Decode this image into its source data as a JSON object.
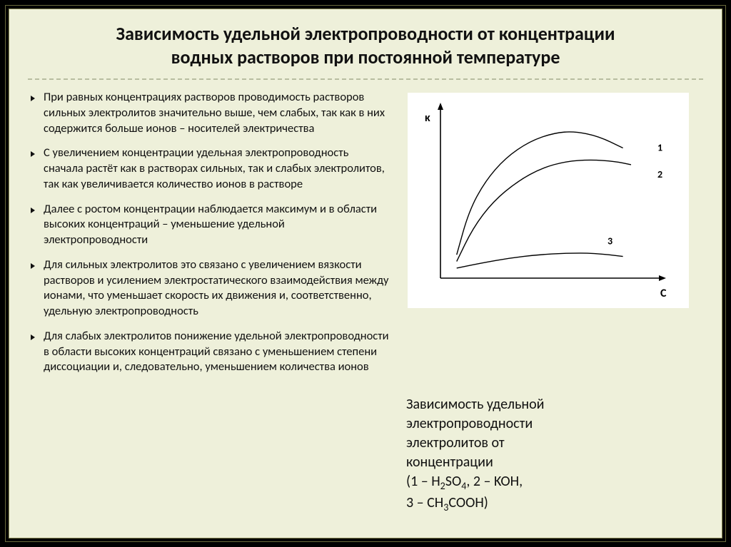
{
  "title_line1": "Зависимость удельной электропроводности от концентрации",
  "title_line2": "водных растворов при постоянной температуре",
  "bullets": [
    "При равных концентрациях растворов проводимость растворов сильных электролитов значительно выше, чем слабых, так как в них содержится больше ионов – носителей электричества",
    "С увеличением концентрации удельная электропроводность сначала растёт как в растворах сильных, так и слабых электролитов, так как увеличивается количество ионов в растворе",
    " Далее с ростом концентрации наблюдается максимум и в области высоких концентраций – уменьшение удельной электропроводности",
    "Для сильных электролитов это связано с увеличением вязкости растворов и усилением электростатического взаимодействия между ионами, что уменьшает скорость их движения и, соответственно, удельную электропроводность",
    "Для слабых электролитов понижение удельной электропроводности в области высоких концентраций связано с уменьшением степени диссоциации и, следовательно, уменьшением количества ионов"
  ],
  "chart": {
    "type": "line",
    "background_color": "#ffffff",
    "axis_color": "#000000",
    "stroke_color": "#000000",
    "stroke_width": 1.4,
    "y_label": "κ",
    "x_label": "С",
    "label_fontsize": 16,
    "line_label_fontsize": 14,
    "xlim": [
      0,
      100
    ],
    "ylim": [
      0,
      100
    ],
    "curves": {
      "1": {
        "label": "1",
        "points": [
          [
            8,
            14
          ],
          [
            14,
            40
          ],
          [
            22,
            58
          ],
          [
            32,
            72
          ],
          [
            44,
            82
          ],
          [
            56,
            87
          ],
          [
            66,
            88
          ],
          [
            78,
            85
          ],
          [
            90,
            78
          ]
        ]
      },
      "2": {
        "label": "2",
        "points": [
          [
            8,
            10
          ],
          [
            16,
            30
          ],
          [
            26,
            46
          ],
          [
            38,
            58
          ],
          [
            50,
            66
          ],
          [
            62,
            70
          ],
          [
            74,
            71
          ],
          [
            86,
            70
          ],
          [
            94,
            68
          ]
        ]
      },
      "3": {
        "label": "3",
        "points": [
          [
            8,
            6
          ],
          [
            20,
            9
          ],
          [
            34,
            12
          ],
          [
            48,
            14
          ],
          [
            62,
            15
          ],
          [
            76,
            15
          ],
          [
            90,
            13
          ]
        ]
      }
    }
  },
  "caption_lines": [
    "Зависимость  удельной",
    "электропроводности",
    "электролитов от",
    "концентрации"
  ],
  "caption_formula": "(1 – H₂SO₄, 2 – KOH, 3 – CH₃COOH)",
  "colors": {
    "slide_bg": "#eef0da",
    "outer_border": "#6b6b3d",
    "inner_border": "#8a8a55",
    "dash_rule": "#b8bda0",
    "text": "#111111"
  }
}
